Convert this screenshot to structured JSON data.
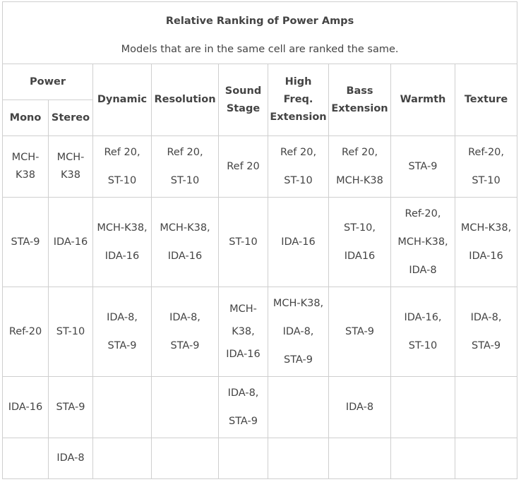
{
  "title": "Relative Ranking of Power Amps",
  "subtitle": "Models that are in the same cell are ranked the same.",
  "headers": {
    "power": "Power",
    "mono": "Mono",
    "stereo": "Stereo",
    "dynamic": "Dynamic",
    "resolution": "Resolution",
    "sound_stage": "Sound\nStage",
    "high_freq": "High Freq.\nExtension",
    "bass": "Bass\nExtension",
    "warmth": "Warmth",
    "texture": "Texture"
  },
  "rows": [
    {
      "mono": "MCH-\nK38",
      "stereo": "MCH-\nK38",
      "dynamic": "Ref 20,\nST-10",
      "resolution": "Ref 20,\nST-10",
      "sound_stage": "Ref 20",
      "high_freq": "Ref 20,\nST-10",
      "bass": "Ref 20,\nMCH-K38",
      "warmth": "STA-9",
      "texture": "Ref-20,\nST-10"
    },
    {
      "mono": "STA-9",
      "stereo": "IDA-16",
      "dynamic": "MCH-K38,\nIDA-16",
      "resolution": "MCH-K38,\nIDA-16",
      "sound_stage": "ST-10",
      "high_freq": "IDA-16",
      "bass": "ST-10,\nIDA16",
      "warmth": "Ref-20,\nMCH-K38,\nIDA-8",
      "texture": "MCH-K38,\nIDA-16"
    },
    {
      "mono": "Ref-20",
      "stereo": "ST-10",
      "dynamic": "IDA-8,\nSTA-9",
      "resolution": "IDA-8,\nSTA-9",
      "sound_stage": "MCH-\nK38,\nIDA-16",
      "high_freq": "MCH-K38,\nIDA-8,\nSTA-9",
      "bass": "STA-9",
      "warmth": "IDA-16,\nST-10",
      "texture": "IDA-8,\nSTA-9"
    },
    {
      "mono": "IDA-16",
      "stereo": "STA-9",
      "dynamic": "",
      "resolution": "",
      "sound_stage": "IDA-8,\nSTA-9",
      "high_freq": "",
      "bass": "IDA-8",
      "warmth": "",
      "texture": ""
    },
    {
      "mono": "",
      "stereo": "IDA-8",
      "dynamic": "",
      "resolution": "",
      "sound_stage": "",
      "high_freq": "",
      "bass": "",
      "warmth": "",
      "texture": ""
    }
  ]
}
